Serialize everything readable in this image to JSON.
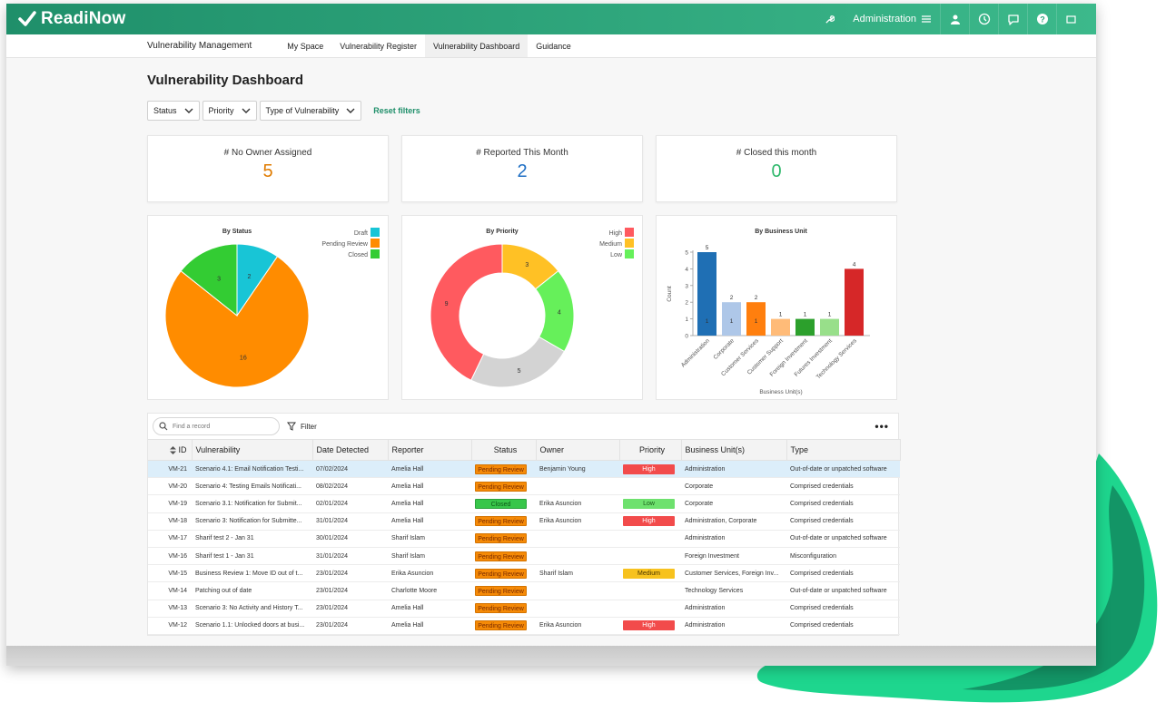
{
  "app": {
    "name": "ReadiNow",
    "admin_label": "Administration"
  },
  "subnav": {
    "brand": "Vulnerability Management",
    "tabs": [
      {
        "label": "My Space",
        "active": false
      },
      {
        "label": "Vulnerability Register",
        "active": false
      },
      {
        "label": "Vulnerability Dashboard",
        "active": true
      },
      {
        "label": "Guidance",
        "active": false
      }
    ]
  },
  "page": {
    "title": "Vulnerability Dashboard"
  },
  "filters": {
    "status": "Status",
    "priority": "Priority",
    "type": "Type of Vulnerability",
    "reset": "Reset filters"
  },
  "cards": [
    {
      "label": "# No Owner Assigned",
      "value": "5",
      "color": "#e07b00"
    },
    {
      "label": "# Reported This Month",
      "value": "2",
      "color": "#1f6fc4"
    },
    {
      "label": "# Closed this month",
      "value": "0",
      "color": "#2eb86b"
    }
  ],
  "colors": {
    "accent": "#1f8f6a",
    "topbar_start": "#1f8f6a",
    "topbar_end": "#3cb98b"
  },
  "chart_data": [
    {
      "type": "pie",
      "title": "By Status",
      "categories": [
        "Draft",
        "Pending Review",
        "Closed"
      ],
      "values": [
        2,
        16,
        3
      ],
      "colors": [
        "#18c5d6",
        "#ff8c00",
        "#33cc33"
      ],
      "legend": "top-right"
    },
    {
      "type": "pie",
      "donut": true,
      "title": "By Priority",
      "categories": [
        "High",
        "Medium",
        "Low"
      ],
      "segments": [
        {
          "label": "Medium",
          "value": 3,
          "color": "#ffc125"
        },
        {
          "label": "Low",
          "value": 4,
          "color": "#66f05a"
        },
        {
          "label": "",
          "value": 5,
          "color": "#d3d3d3"
        },
        {
          "label": "High",
          "value": 9,
          "color": "#ff5a5f"
        }
      ],
      "legend_colors": [
        "#ff5a5f",
        "#ffc125",
        "#66f05a"
      ],
      "legend": "top-right"
    },
    {
      "type": "bar",
      "title": "By Business Unit",
      "xlabel": "Business Unit(s)",
      "ylabel": "Count",
      "ylim": [
        0,
        5
      ],
      "yticks": [
        "0",
        "1",
        "2",
        "3",
        "4",
        "5"
      ],
      "categories": [
        "Administration",
        "Corporate",
        "Customer Services",
        "Customer Support",
        "Foreign Investment",
        "Futures Investment",
        "Technology Services"
      ],
      "values": [
        5,
        2,
        2,
        1,
        1,
        1,
        4
      ],
      "inner_labels": [
        "1",
        "1",
        "1",
        "",
        "",
        "",
        ""
      ],
      "colors": [
        "#1f6fb4",
        "#aec7e8",
        "#ff7f0e",
        "#ffbb78",
        "#2ca02c",
        "#98df8a",
        "#d62728"
      ]
    }
  ],
  "grid": {
    "search_placeholder": "Find a record",
    "filter_label": "Filter",
    "more_label": "•••",
    "columns": [
      "ID",
      "Vulnerability",
      "Date Detected",
      "Reporter",
      "Status",
      "Owner",
      "Priority",
      "Business Unit(s)",
      "Type"
    ],
    "rows": [
      {
        "id": "VM-21",
        "vuln": "Scenario 4.1: Email Notification Testi...",
        "date": "07/02/2024",
        "reporter": "Amelia Hall",
        "status": "Pending Review",
        "owner": "Benjamin Young",
        "priority": "High",
        "bu": "Administration",
        "type": "Out-of-date or unpatched software",
        "selected": true
      },
      {
        "id": "VM-20",
        "vuln": "Scenario 4: Testing Emails Notificati...",
        "date": "08/02/2024",
        "reporter": "Amelia Hall",
        "status": "Pending Review",
        "owner": "",
        "priority": "",
        "bu": "Corporate",
        "type": "Comprised credentials"
      },
      {
        "id": "VM-19",
        "vuln": "Scenario 3.1: Notification for Submit...",
        "date": "02/01/2024",
        "reporter": "Amelia Hall",
        "status": "Closed",
        "owner": "Erika Asuncion",
        "priority": "Low",
        "bu": "Corporate",
        "type": "Comprised credentials"
      },
      {
        "id": "VM-18",
        "vuln": "Scenario 3: Notification for Submitte...",
        "date": "31/01/2024",
        "reporter": "Amelia Hall",
        "status": "Pending Review",
        "owner": "Erika Asuncion",
        "priority": "High",
        "bu": "Administration, Corporate",
        "type": "Comprised credentials"
      },
      {
        "id": "VM-17",
        "vuln": "Sharif test 2 - Jan 31",
        "date": "30/01/2024",
        "reporter": "Sharif Islam",
        "status": "Pending Review",
        "owner": "",
        "priority": "",
        "bu": "Administration",
        "type": "Out-of-date or unpatched software"
      },
      {
        "id": "VM-16",
        "vuln": "Sharif test 1 - Jan 31",
        "date": "31/01/2024",
        "reporter": "Sharif Islam",
        "status": "Pending Review",
        "owner": "",
        "priority": "",
        "bu": "Foreign Investment",
        "type": "Misconfiguration"
      },
      {
        "id": "VM-15",
        "vuln": "Business Review 1: Move ID out of t...",
        "date": "23/01/2024",
        "reporter": "Erika Asuncion",
        "status": "Pending Review",
        "owner": "Sharif Islam",
        "priority": "Medium",
        "bu": "Customer Services, Foreign Inv...",
        "type": "Comprised credentials"
      },
      {
        "id": "VM-14",
        "vuln": "Patching out of date",
        "date": "23/01/2024",
        "reporter": "Charlotte Moore",
        "status": "Pending Review",
        "owner": "",
        "priority": "",
        "bu": "Technology Services",
        "type": "Out-of-date or unpatched software"
      },
      {
        "id": "VM-13",
        "vuln": "Scenario 3: No Activity and History T...",
        "date": "23/01/2024",
        "reporter": "Amelia Hall",
        "status": "Pending Review",
        "owner": "",
        "priority": "",
        "bu": "Administration",
        "type": "Comprised credentials"
      },
      {
        "id": "VM-12",
        "vuln": "Scenario 1.1: Unlocked doors at busi...",
        "date": "23/01/2024",
        "reporter": "Amelia Hall",
        "status": "Pending Review",
        "owner": "Erika Asuncion",
        "priority": "High",
        "bu": "Administration",
        "type": "Comprised credentials"
      }
    ]
  }
}
